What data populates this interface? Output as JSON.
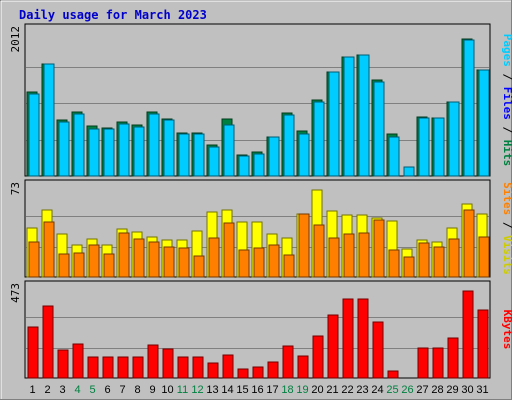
{
  "chart_data": {
    "type": "bar",
    "title": "Daily usage for March 2023",
    "days": [
      "1",
      "2",
      "3",
      "4",
      "5",
      "6",
      "7",
      "8",
      "9",
      "10",
      "11",
      "12",
      "13",
      "14",
      "15",
      "16",
      "17",
      "18",
      "19",
      "20",
      "21",
      "22",
      "23",
      "24",
      "25",
      "26",
      "27",
      "28",
      "29",
      "30",
      "31"
    ],
    "weekend_days": [
      "4",
      "5",
      "11",
      "12",
      "18",
      "19",
      "25",
      "26"
    ],
    "panels": [
      {
        "name": "hits_files_pages",
        "ymax_label": "2012",
        "ymax": 2012,
        "series": [
          {
            "name": "Hits",
            "color": "#008040",
            "values": [
              1170,
              1570,
              780,
              900,
              700,
              670,
              750,
              710,
              890,
              800,
              600,
              600,
              440,
              790,
              300,
              330,
              550,
              880,
              630,
              1060,
              1460,
              1660,
              1690,
              1340,
              580,
              0,
              820,
              810,
              1030,
              1920,
              1480
            ]
          },
          {
            "name": "Files",
            "color": "#00ccff",
            "values": [
              1140,
              1570,
              750,
              870,
              660,
              660,
              720,
              680,
              860,
              780,
              580,
              580,
              400,
              710,
              280,
              310,
              540,
              850,
              580,
              1040,
              1460,
              1660,
              1690,
              1320,
              540,
              120,
              810,
              810,
              1030,
              1900,
              1480
            ]
          }
        ],
        "side_label": [
          {
            "text": "Pages",
            "color": "#00ccff"
          },
          {
            "text": " / ",
            "color": "#000000"
          },
          {
            "text": "Files",
            "color": "#0000ff"
          },
          {
            "text": " / ",
            "color": "#000000"
          },
          {
            "text": "Hits",
            "color": "#008040"
          }
        ]
      },
      {
        "name": "visits_sites",
        "ymax_label": "73",
        "ymax": 73,
        "series": [
          {
            "name": "Visits",
            "color": "#ffff00",
            "values": [
              40,
              55,
              35,
              26,
              31,
              26,
              39,
              37,
              33,
              30,
              30,
              38,
              53,
              55,
              45,
              45,
              35,
              32,
              52,
              71,
              54,
              51,
              51,
              48,
              46,
              23,
              30,
              29,
              40,
              60,
              52
            ]
          },
          {
            "name": "Sites",
            "color": "#ff8000",
            "values": [
              29,
              45,
              19,
              20,
              26,
              19,
              36,
              31,
              29,
              25,
              24,
              17,
              32,
              44,
              22,
              24,
              26,
              18,
              52,
              43,
              32,
              35,
              36,
              47,
              22,
              16,
              28,
              25,
              31,
              55,
              33
            ]
          }
        ],
        "side_label": [
          {
            "text": "Sites",
            "color": "#ff8000"
          },
          {
            "text": " / ",
            "color": "#000000"
          },
          {
            "text": "Visits",
            "color": "#cccc00"
          }
        ]
      },
      {
        "name": "kbytes",
        "ymax_label": "473",
        "ymax": 473,
        "series": [
          {
            "name": "KBytes",
            "color": "#ff0000",
            "values": [
              273,
              383,
              147,
              180,
              113,
              113,
              113,
              113,
              174,
              153,
              113,
              113,
              80,
              124,
              47,
              60,
              86,
              170,
              115,
              223,
              333,
              422,
              422,
              300,
              36,
              0,
              160,
              160,
              213,
              462,
              360
            ]
          }
        ],
        "side_label": [
          {
            "text": "KBytes",
            "color": "#ff0000"
          }
        ]
      }
    ],
    "colors": {
      "background": "#c0c0c0",
      "grid": "#808080",
      "weekday_label": "#000000",
      "weekend_label": "#008040",
      "title": "#0000cc"
    }
  }
}
